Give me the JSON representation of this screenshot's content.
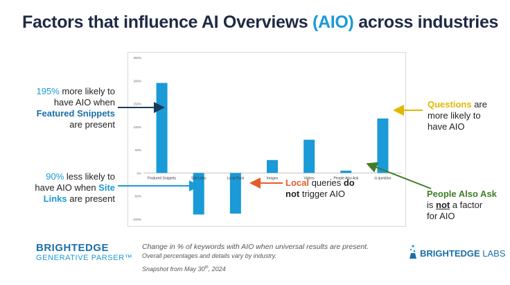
{
  "title": {
    "part1": "Factors that influence AI Overviews ",
    "accent": "(AIO)",
    "part2": " across industries"
  },
  "callouts": {
    "featured": {
      "pct": "195%",
      "t1": " more likely to",
      "t2": "have AIO when",
      "bold": "Featured Snippets",
      "t3": "are present"
    },
    "sitelinks": {
      "pct": "90%",
      "t1": " less likely to",
      "t2": "have AIO when ",
      "bold1": "Site",
      "bold2": "Links",
      "t3": " are present"
    },
    "local": {
      "bold1": "Local",
      "t1": " queries ",
      "bold2": "do",
      "bold3": "not",
      "t2": " trigger AIO"
    },
    "questions": {
      "bold": "Questions",
      "t1": " are",
      "t2": "more likely to",
      "t3": "have AIO"
    },
    "paa": {
      "bold": "People Also Ask",
      "t1": "is ",
      "bold2": "not",
      "t2": " a factor",
      "t3": "for AIO"
    }
  },
  "chart_data": {
    "type": "bar",
    "categories": [
      "Featured Snippets",
      "Site Links",
      "Local Pack",
      "Images",
      "Videos",
      "People Also Ask",
      "is question"
    ],
    "values": [
      195,
      -90,
      -88,
      28,
      72,
      5,
      118
    ],
    "ylim": [
      -100,
      250
    ],
    "yticks": [
      -100,
      -50,
      0,
      50,
      100,
      150,
      200,
      250
    ],
    "ytick_labels": [
      "-100%",
      "-50%",
      "0%",
      "50%",
      "100%",
      "150%",
      "200%",
      "250%"
    ],
    "bar_color": "#1a9ad6",
    "grid": false
  },
  "brand": {
    "line1": "BRIGHTEDGE",
    "line2": "GENERATIVE PARSER™"
  },
  "footnote": {
    "line1": "Change in % of keywords with AIO when universal results are present.",
    "line2": "Overall percentages and details vary by industry.",
    "snapshot_pre": "Snapshot from May 30",
    "snapshot_sup": "th",
    "snapshot_post": ", 2024"
  },
  "labs_logo": {
    "bold": "BRIGHTEDGE",
    "light": " LABS"
  },
  "colors": {
    "accent": "#1a9ad6",
    "navy": "#1a6fa8",
    "yellow": "#e0b800",
    "orange": "#e65c28",
    "green": "#3e7d2a"
  }
}
